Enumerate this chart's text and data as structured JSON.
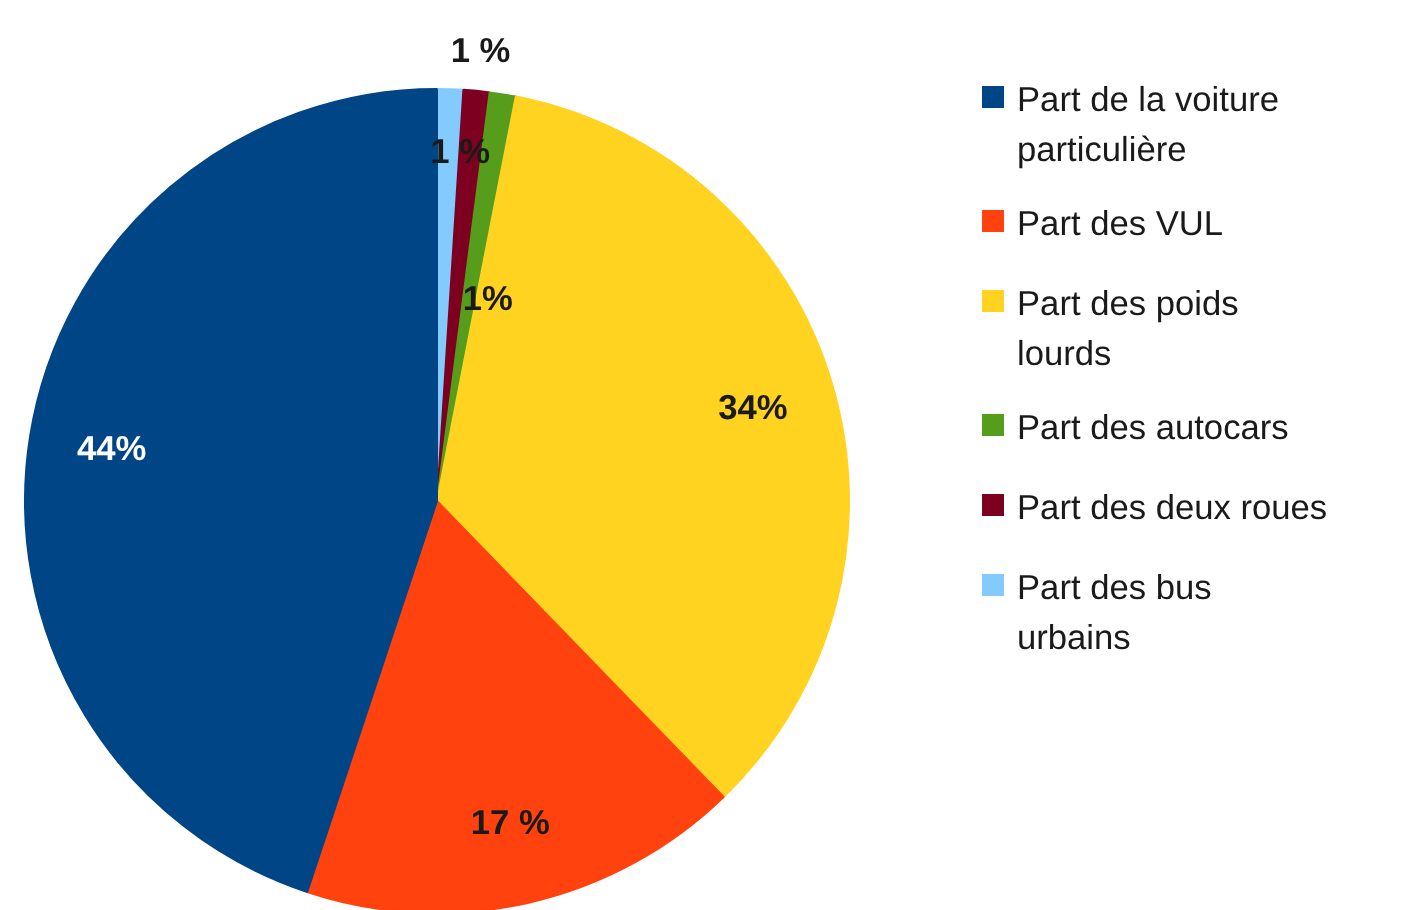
{
  "chart_data": {
    "type": "pie",
    "categories": [
      "Part de la voiture particulière",
      "Part des VUL",
      "Part des poids lourds",
      "Part des autocars",
      "Part des deux roues",
      "Part des bus urbains"
    ],
    "values": [
      44,
      17,
      34,
      1,
      1,
      1
    ],
    "colors": [
      "#004586",
      "#ff420e",
      "#ffd320",
      "#579d1c",
      "#7e0021",
      "#83caff"
    ],
    "value_labels": [
      "44%",
      "17 %",
      "34%",
      "1%",
      "1 %",
      "1 %"
    ],
    "legend": "right"
  }
}
